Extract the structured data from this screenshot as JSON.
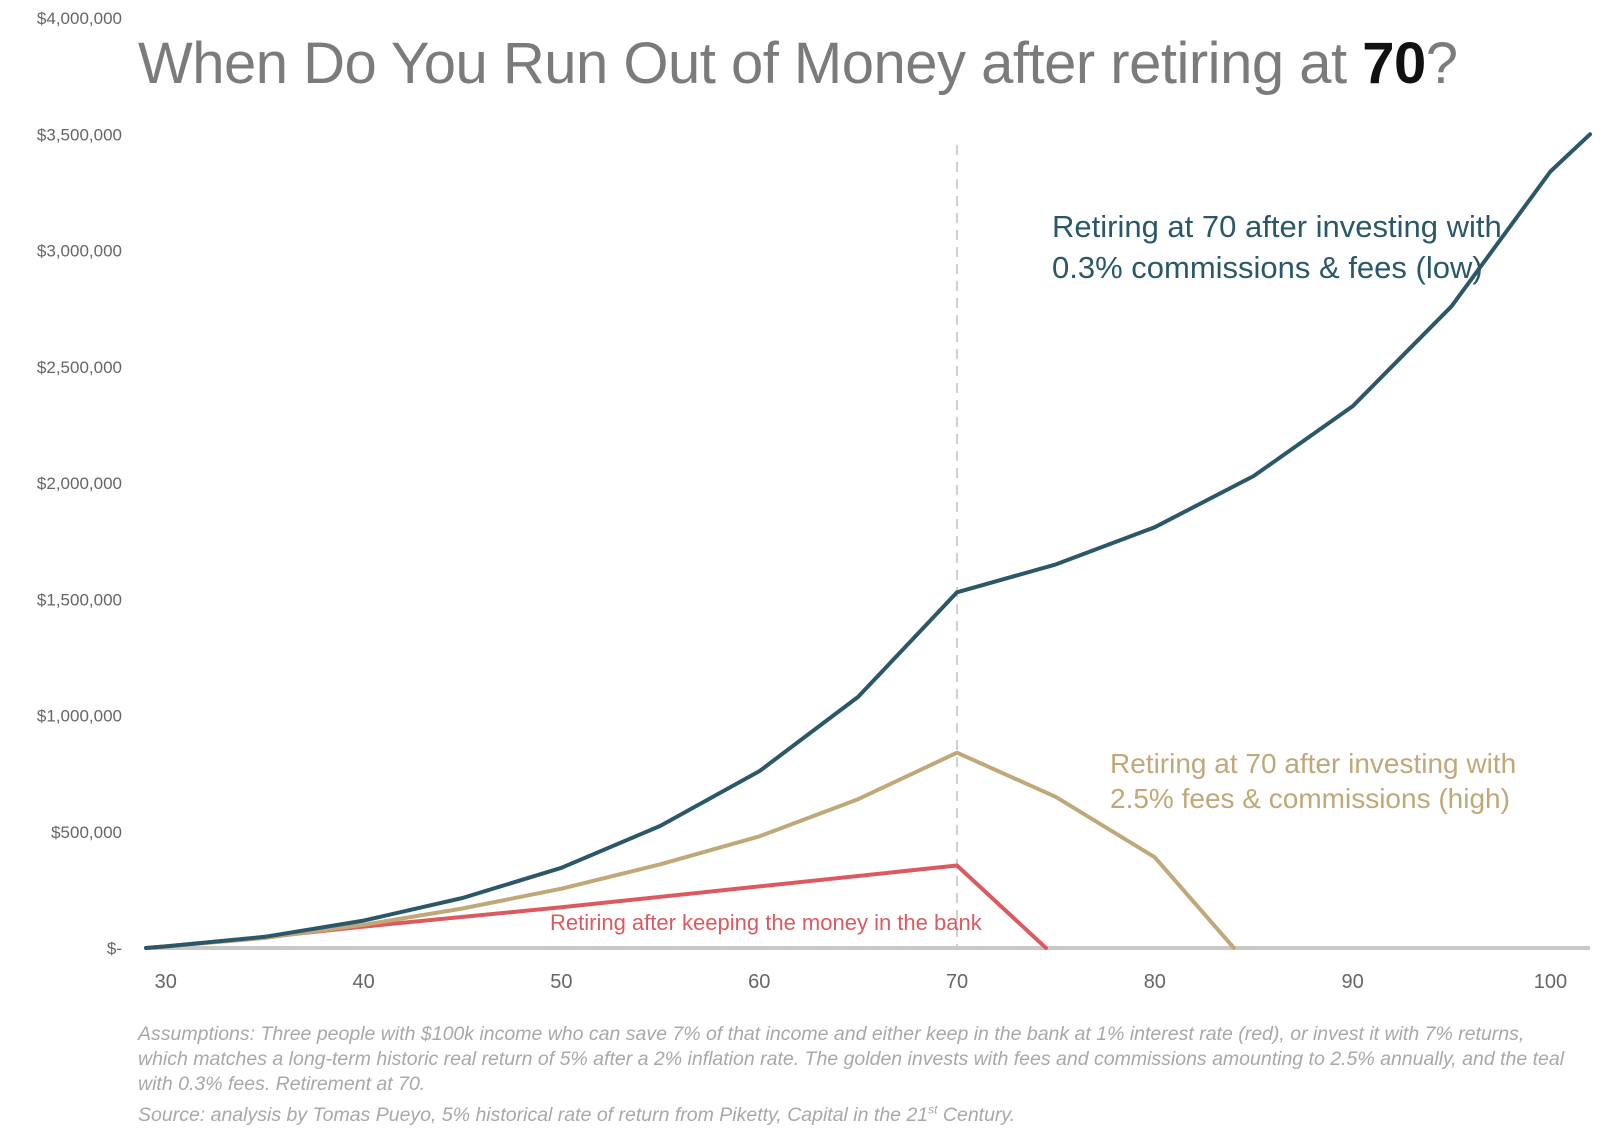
{
  "title": {
    "prefix": "When Do You Run Out of Money after retiring at ",
    "bold": "70",
    "suffix": "?"
  },
  "colors": {
    "teal": "#2a5869",
    "gold": "#c0a878",
    "red": "#dc5a5f",
    "axis": "#c8c8c8",
    "tick_text": "#666666",
    "title": "#7b7b7b"
  },
  "annotations": {
    "teal": "Retiring at 70 after investing with 0.3% commissions & fees (low)",
    "gold": "Retiring at 70 after investing with 2.5% fees & commissions (high)",
    "red": "Retiring after keeping the money in the bank"
  },
  "footnote": {
    "assumptions": "Assumptions: Three people with $100k income who can save 7% of that income and  either keep in the bank at 1% interest rate (red), or invest it with 7% returns, which matches a long-term historic real return of 5% after a 2% inflation rate. The golden invests with fees and commissions amounting to 2.5% annually, and the teal with 0.3% fees. Retirement at 70.",
    "source_prefix": "Source: analysis by Tomas Pueyo, 5% historical rate of return from Piketty, Capital in the 21",
    "source_sup": "st",
    "source_suffix": " Century."
  },
  "chart_data": {
    "type": "line",
    "xlim": [
      29,
      102
    ],
    "ylim": [
      0,
      4000000
    ],
    "x_ticks": [
      30,
      40,
      50,
      60,
      70,
      80,
      90,
      100
    ],
    "x_tick_labels": [
      "30",
      "40",
      "50",
      "60",
      "70",
      "80",
      "90",
      "100"
    ],
    "y_ticks": [
      0,
      500000,
      1000000,
      1500000,
      2000000,
      2500000,
      3000000,
      3500000,
      4000000
    ],
    "y_tick_labels": [
      "$-",
      "$500,000",
      "$1,000,000",
      "$1,500,000",
      "$2,000,000",
      "$2,500,000",
      "$3,000,000",
      "$3,500,000",
      "$4,000,000"
    ],
    "retirement_marker_x": 70,
    "grid": false,
    "series": [
      {
        "name": "Retiring at 70 after investing with 0.3% commissions & fees (low)",
        "color": "#2a5869",
        "points": [
          [
            29,
            0
          ],
          [
            30,
            7000
          ],
          [
            35,
            48000
          ],
          [
            40,
            118000
          ],
          [
            45,
            215000
          ],
          [
            50,
            345000
          ],
          [
            55,
            525000
          ],
          [
            60,
            760000
          ],
          [
            65,
            1080000
          ],
          [
            70,
            1530000
          ],
          [
            75,
            1650000
          ],
          [
            80,
            1810000
          ],
          [
            85,
            2030000
          ],
          [
            90,
            2330000
          ],
          [
            95,
            2760000
          ],
          [
            100,
            3340000
          ],
          [
            102,
            3500000
          ]
        ]
      },
      {
        "name": "Retiring at 70 after investing with 2.5% fees & commissions (high)",
        "color": "#c0a878",
        "points": [
          [
            29,
            0
          ],
          [
            30,
            7000
          ],
          [
            35,
            43000
          ],
          [
            40,
            100000
          ],
          [
            45,
            170000
          ],
          [
            50,
            255000
          ],
          [
            55,
            360000
          ],
          [
            60,
            480000
          ],
          [
            65,
            640000
          ],
          [
            70,
            840000
          ],
          [
            75,
            650000
          ],
          [
            80,
            390000
          ],
          [
            84,
            0
          ]
        ]
      },
      {
        "name": "Retiring after keeping the money in the bank",
        "color": "#dc5a5f",
        "points": [
          [
            29,
            0
          ],
          [
            30,
            7000
          ],
          [
            35,
            47000
          ],
          [
            40,
            92000
          ],
          [
            50,
            175000
          ],
          [
            60,
            265000
          ],
          [
            70,
            355000
          ],
          [
            74.5,
            0
          ]
        ]
      }
    ]
  }
}
